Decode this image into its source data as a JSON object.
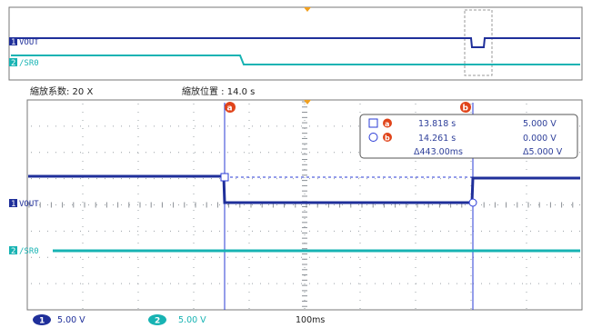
{
  "colors": {
    "ch1": "#1f2f9a",
    "ch2": "#17b3b3",
    "cursor": "#2a3bd6",
    "marker": "#e0441a",
    "trigger": "#f0a020",
    "grid": "#9aa0a6"
  },
  "overview": {
    "ch1_label": "VOUT",
    "ch2_label": "/SR0",
    "ch1_marker": "1",
    "ch2_marker": "2"
  },
  "zoom_bar": {
    "factor_label": "縮放系数: 20 X",
    "position_label": "縮放位置 : 14.0 s"
  },
  "main": {
    "ch1_label": "VOUT",
    "ch2_label": "/SR0",
    "cursor_a_marker": "a",
    "cursor_b_marker": "b"
  },
  "readout": {
    "a_time": "13.818 s",
    "a_volt": "5.000 V",
    "b_time": "14.261 s",
    "b_volt": "0.000 V",
    "delta_time": "Δ443.00ms",
    "delta_volt": "Δ5.000 V"
  },
  "footer": {
    "ch1_badge": "1",
    "ch1_scale": "5.00 V",
    "ch2_badge": "2",
    "ch2_scale": "5.00 V",
    "timebase": "100ms"
  }
}
